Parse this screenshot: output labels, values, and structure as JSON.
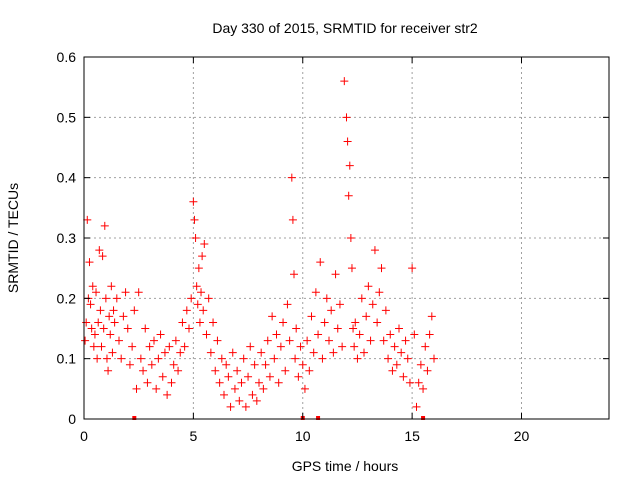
{
  "colors": {
    "series": "#ff0000",
    "grid": "#a0a0a0",
    "axis": "#000000",
    "background": "#ffffff"
  },
  "chart_data": {
    "type": "scatter",
    "title": "Day 330 of 2015, SRMTID for receiver str2",
    "xlabel": "GPS time / hours",
    "ylabel": "SRMTID / TECUs",
    "xlim": [
      0,
      24
    ],
    "ylim": [
      0,
      0.6
    ],
    "xticks": [
      0,
      5,
      10,
      15,
      20
    ],
    "xtick_labels": [
      "0",
      "5",
      "10",
      "15",
      "20"
    ],
    "yticks": [
      0,
      0.1,
      0.2,
      0.3,
      0.4,
      0.5,
      0.6
    ],
    "ytick_labels": [
      "0",
      "0.1",
      "0.2",
      "0.3",
      "0.4",
      "0.5",
      "0.6"
    ],
    "grid": true,
    "legend": "none",
    "marker": "+",
    "series": [
      {
        "name": "SRMTID str2",
        "x": [
          0.05,
          0.1,
          0.15,
          0.2,
          0.25,
          0.3,
          0.35,
          0.4,
          0.45,
          0.5,
          0.55,
          0.6,
          0.65,
          0.7,
          0.75,
          0.8,
          0.85,
          0.9,
          0.95,
          1.0,
          1.05,
          1.1,
          1.15,
          1.2,
          1.25,
          1.3,
          1.35,
          1.4,
          1.5,
          1.6,
          1.7,
          1.8,
          1.9,
          2.0,
          2.1,
          2.2,
          2.3,
          2.4,
          2.5,
          2.6,
          2.7,
          2.8,
          2.9,
          3.0,
          3.1,
          3.2,
          3.3,
          3.4,
          3.5,
          3.6,
          3.7,
          3.8,
          3.9,
          4.0,
          4.1,
          4.2,
          4.3,
          4.4,
          4.5,
          4.6,
          4.7,
          4.8,
          4.9,
          5.0,
          5.05,
          5.1,
          5.15,
          5.2,
          5.25,
          5.3,
          5.35,
          5.4,
          5.45,
          5.5,
          5.6,
          5.7,
          5.8,
          5.9,
          6.0,
          6.1,
          6.2,
          6.3,
          6.4,
          6.5,
          6.6,
          6.7,
          6.8,
          6.9,
          7.0,
          7.1,
          7.2,
          7.3,
          7.4,
          7.5,
          7.6,
          7.7,
          7.8,
          7.9,
          8.0,
          8.1,
          8.2,
          8.3,
          8.4,
          8.5,
          8.6,
          8.7,
          8.8,
          8.9,
          9.0,
          9.1,
          9.2,
          9.3,
          9.4,
          9.5,
          9.55,
          9.6,
          9.65,
          9.7,
          9.8,
          9.9,
          10.0,
          10.1,
          10.2,
          10.3,
          10.4,
          10.5,
          10.6,
          10.7,
          10.8,
          10.9,
          11.0,
          11.1,
          11.2,
          11.3,
          11.4,
          11.5,
          11.6,
          11.7,
          11.8,
          11.9,
          12.0,
          12.05,
          12.1,
          12.15,
          12.2,
          12.25,
          12.3,
          12.35,
          12.4,
          12.5,
          12.6,
          12.7,
          12.8,
          12.9,
          13.0,
          13.1,
          13.2,
          13.3,
          13.4,
          13.5,
          13.6,
          13.7,
          13.8,
          13.9,
          14.0,
          14.1,
          14.2,
          14.3,
          14.4,
          14.5,
          14.6,
          14.7,
          14.8,
          14.9,
          15.0,
          15.1,
          15.2,
          15.3,
          15.4,
          15.5,
          15.6,
          15.7,
          15.8,
          15.9,
          16.0
        ],
        "y": [
          0.13,
          0.16,
          0.33,
          0.2,
          0.26,
          0.19,
          0.15,
          0.22,
          0.12,
          0.14,
          0.21,
          0.1,
          0.16,
          0.28,
          0.18,
          0.12,
          0.27,
          0.15,
          0.32,
          0.2,
          0.1,
          0.08,
          0.17,
          0.14,
          0.22,
          0.11,
          0.18,
          0.16,
          0.2,
          0.13,
          0.1,
          0.17,
          0.21,
          0.15,
          0.09,
          0.12,
          0.18,
          0.05,
          0.21,
          0.1,
          0.08,
          0.15,
          0.06,
          0.12,
          0.09,
          0.13,
          0.05,
          0.1,
          0.14,
          0.07,
          0.11,
          0.04,
          0.12,
          0.06,
          0.09,
          0.13,
          0.08,
          0.11,
          0.16,
          0.12,
          0.18,
          0.15,
          0.2,
          0.36,
          0.33,
          0.3,
          0.22,
          0.19,
          0.25,
          0.16,
          0.21,
          0.27,
          0.18,
          0.29,
          0.14,
          0.2,
          0.11,
          0.16,
          0.08,
          0.13,
          0.06,
          0.1,
          0.04,
          0.09,
          0.07,
          0.02,
          0.11,
          0.05,
          0.08,
          0.03,
          0.06,
          0.1,
          0.02,
          0.07,
          0.12,
          0.04,
          0.09,
          0.03,
          0.06,
          0.11,
          0.05,
          0.09,
          0.13,
          0.07,
          0.17,
          0.1,
          0.14,
          0.06,
          0.12,
          0.16,
          0.08,
          0.19,
          0.13,
          0.4,
          0.33,
          0.24,
          0.1,
          0.15,
          0.07,
          0.12,
          0.09,
          0.05,
          0.13,
          0.08,
          0.17,
          0.11,
          0.21,
          0.14,
          0.26,
          0.1,
          0.16,
          0.2,
          0.13,
          0.18,
          0.11,
          0.24,
          0.15,
          0.19,
          0.12,
          0.56,
          0.5,
          0.46,
          0.37,
          0.42,
          0.3,
          0.25,
          0.15,
          0.12,
          0.16,
          0.1,
          0.14,
          0.2,
          0.11,
          0.17,
          0.22,
          0.13,
          0.19,
          0.28,
          0.16,
          0.21,
          0.25,
          0.13,
          0.18,
          0.1,
          0.14,
          0.08,
          0.12,
          0.09,
          0.15,
          0.11,
          0.07,
          0.13,
          0.1,
          0.06,
          0.25,
          0.14,
          0.02,
          0.06,
          0.09,
          0.05,
          0.12,
          0.08,
          0.14,
          0.17,
          0.1
        ]
      }
    ],
    "outliers_at_zero_x": [
      2.3,
      10.0,
      10.7,
      15.5
    ]
  }
}
